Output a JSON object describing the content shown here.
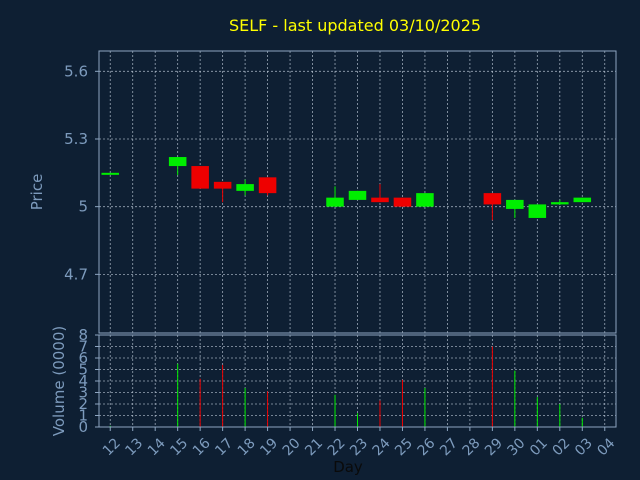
{
  "chart_data": {
    "type": "candlestick",
    "title": "SELF - last updated 03/10/2025",
    "price_panel": {
      "ylabel": "Price",
      "ylim": [
        4.44,
        5.69
      ],
      "yticks": [
        {
          "value": 5.6,
          "label": "5.6"
        },
        {
          "value": 5.3,
          "label": "5.3"
        },
        {
          "value": 5.0,
          "label": "5"
        },
        {
          "value": 4.7,
          "label": "4.7"
        }
      ],
      "grid": true
    },
    "volume_panel": {
      "ylabel": "Volume (0000)",
      "ylim": [
        0,
        8
      ],
      "yticks": [
        {
          "value": 0,
          "label": "0"
        },
        {
          "value": 1,
          "label": "1"
        },
        {
          "value": 2,
          "label": "2"
        },
        {
          "value": 3,
          "label": "3"
        },
        {
          "value": 4,
          "label": "4"
        },
        {
          "value": 5,
          "label": "5"
        },
        {
          "value": 6,
          "label": "6"
        },
        {
          "value": 7,
          "label": "7"
        },
        {
          "value": 8,
          "label": "8"
        }
      ],
      "grid": true
    },
    "xlabel": "Day",
    "x_ticks": [
      "12",
      "13",
      "14",
      "15",
      "16",
      "17",
      "18",
      "19",
      "20",
      "21",
      "22",
      "23",
      "24",
      "25",
      "26",
      "27",
      "28",
      "29",
      "30",
      "01",
      "02",
      "03",
      "04"
    ],
    "candles": [
      {
        "x": "12",
        "open": 5.15,
        "high": 5.15,
        "low": 5.15,
        "close": 5.15,
        "volume": 0.1
      },
      {
        "x": "15",
        "open": 5.18,
        "high": 5.22,
        "low": 5.14,
        "close": 5.22,
        "volume": 5.5
      },
      {
        "x": "16",
        "open": 5.18,
        "high": 5.18,
        "low": 5.08,
        "close": 5.08,
        "volume": 4.2
      },
      {
        "x": "17",
        "open": 5.11,
        "high": 5.11,
        "low": 5.02,
        "close": 5.08,
        "volume": 5.4
      },
      {
        "x": "18",
        "open": 5.07,
        "high": 5.12,
        "low": 5.05,
        "close": 5.1,
        "volume": 3.4
      },
      {
        "x": "19",
        "open": 5.13,
        "high": 5.13,
        "low": 5.05,
        "close": 5.06,
        "volume": 3.1
      },
      {
        "x": "22",
        "open": 5.0,
        "high": 5.09,
        "low": 5.0,
        "close": 5.04,
        "volume": 2.8
      },
      {
        "x": "23",
        "open": 5.03,
        "high": 5.07,
        "low": 5.03,
        "close": 5.07,
        "volume": 1.2
      },
      {
        "x": "24",
        "open": 5.04,
        "high": 5.1,
        "low": 5.02,
        "close": 5.02,
        "volume": 2.3
      },
      {
        "x": "25",
        "open": 5.04,
        "high": 5.04,
        "low": 5.0,
        "close": 5.0,
        "volume": 4.1
      },
      {
        "x": "26",
        "open": 5.0,
        "high": 5.06,
        "low": 5.0,
        "close": 5.06,
        "volume": 3.4
      },
      {
        "x": "29",
        "open": 5.06,
        "high": 5.06,
        "low": 4.94,
        "close": 5.01,
        "volume": 7.0
      },
      {
        "x": "30",
        "open": 4.99,
        "high": 5.03,
        "low": 4.95,
        "close": 5.03,
        "volume": 4.9
      },
      {
        "x": "01",
        "open": 4.95,
        "high": 5.01,
        "low": 4.95,
        "close": 5.01,
        "volume": 2.6
      },
      {
        "x": "02",
        "open": 5.01,
        "high": 5.03,
        "low": 5.01,
        "close": 5.02,
        "volume": 2.0
      },
      {
        "x": "03",
        "open": 5.02,
        "high": 5.04,
        "low": 5.02,
        "close": 5.04,
        "volume": 0.8
      }
    ],
    "colors": {
      "background": "#0e1f33",
      "axis": "#8ea6c2",
      "grid": "#c8d4e2",
      "title": "#ffff00",
      "label": "#7d9bbd",
      "up": "#00ee00",
      "down": "#ee0000"
    }
  }
}
